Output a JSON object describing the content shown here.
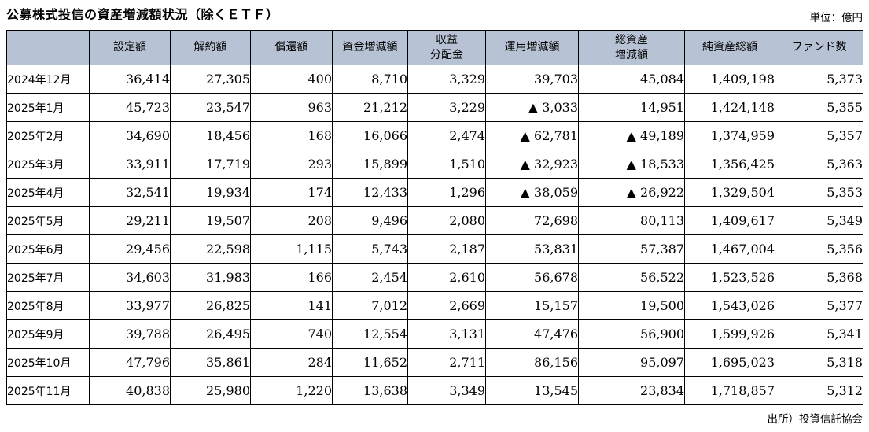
{
  "title": "公募株式投信の資産増減額状況（除くＥＴＦ）",
  "unit_label": "単位：億円",
  "source_label": "出所）投資信託協会",
  "colors": {
    "header_bg": "#b7c3d4",
    "border": "#000000",
    "background": "#ffffff"
  },
  "table": {
    "columns": [
      "設定額",
      "解約額",
      "償還額",
      "資金増減額",
      "収益\n分配金",
      "運用増減額",
      "総資産\n増減額",
      "純資産総額",
      "ファンド数"
    ],
    "rows": [
      {
        "label": "2024年12月",
        "values": [
          "36,414",
          "27,305",
          "400",
          "8,710",
          "3,329",
          "39,703",
          "45,084",
          "1,409,198",
          "5,373"
        ]
      },
      {
        "label": "2025年1月",
        "values": [
          "45,723",
          "23,547",
          "963",
          "21,212",
          "3,229",
          "▲ 3,033",
          "14,951",
          "1,424,148",
          "5,355"
        ]
      },
      {
        "label": "2025年2月",
        "values": [
          "34,690",
          "18,456",
          "168",
          "16,066",
          "2,474",
          "▲ 62,781",
          "▲ 49,189",
          "1,374,959",
          "5,357"
        ]
      },
      {
        "label": "2025年3月",
        "values": [
          "33,911",
          "17,719",
          "293",
          "15,899",
          "1,510",
          "▲ 32,923",
          "▲ 18,533",
          "1,356,425",
          "5,363"
        ]
      },
      {
        "label": "2025年4月",
        "values": [
          "32,541",
          "19,934",
          "174",
          "12,433",
          "1,296",
          "▲ 38,059",
          "▲ 26,922",
          "1,329,504",
          "5,353"
        ]
      },
      {
        "label": "2025年5月",
        "values": [
          "29,211",
          "19,507",
          "208",
          "9,496",
          "2,080",
          "72,698",
          "80,113",
          "1,409,617",
          "5,349"
        ]
      },
      {
        "label": "2025年6月",
        "values": [
          "29,456",
          "22,598",
          "1,115",
          "5,743",
          "2,187",
          "53,831",
          "57,387",
          "1,467,004",
          "5,356"
        ]
      },
      {
        "label": "2025年7月",
        "values": [
          "34,603",
          "31,983",
          "166",
          "2,454",
          "2,610",
          "56,678",
          "56,522",
          "1,523,526",
          "5,368"
        ]
      },
      {
        "label": "2025年8月",
        "values": [
          "33,977",
          "26,825",
          "141",
          "7,012",
          "2,669",
          "15,157",
          "19,500",
          "1,543,026",
          "5,377"
        ]
      },
      {
        "label": "2025年9月",
        "values": [
          "39,788",
          "26,495",
          "740",
          "12,554",
          "3,131",
          "47,476",
          "56,900",
          "1,599,926",
          "5,341"
        ]
      },
      {
        "label": "2025年10月",
        "values": [
          "47,796",
          "35,861",
          "284",
          "11,652",
          "2,711",
          "86,156",
          "95,097",
          "1,695,023",
          "5,318"
        ]
      },
      {
        "label": "2025年11月",
        "values": [
          "40,838",
          "25,980",
          "1,220",
          "13,638",
          "3,349",
          "13,545",
          "23,834",
          "1,718,857",
          "5,312"
        ]
      }
    ]
  }
}
